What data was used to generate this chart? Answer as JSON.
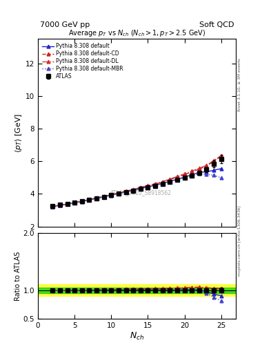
{
  "title_left": "7000 GeV pp",
  "title_right": "Soft QCD",
  "plot_title": "Average $p_T$ vs $N_{ch}$ ($N_{ch} > 1, p_T > 2.5$ GeV)",
  "ylabel_main": "$\\langle p_T \\rangle$ [GeV]",
  "ylabel_ratio": "Ratio to ATLAS",
  "xlabel": "$N_{ch}$",
  "watermark": "ATLAS_2010_S8918562",
  "right_label_top": "Rivet 3.1.10, ≥ 3M events",
  "right_label_bot": "mcplots.cern.ch [arXiv:1306.3436]",
  "atlas_x": [
    2,
    3,
    4,
    5,
    6,
    7,
    8,
    9,
    10,
    11,
    12,
    13,
    14,
    15,
    16,
    17,
    18,
    19,
    20,
    21,
    22,
    23,
    24,
    25
  ],
  "atlas_y": [
    3.25,
    3.32,
    3.38,
    3.46,
    3.55,
    3.64,
    3.73,
    3.82,
    3.92,
    4.01,
    4.1,
    4.2,
    4.3,
    4.4,
    4.5,
    4.62,
    4.75,
    4.88,
    5.0,
    5.14,
    5.28,
    5.5,
    5.85,
    6.15
  ],
  "atlas_yerr": [
    0.04,
    0.04,
    0.04,
    0.04,
    0.04,
    0.04,
    0.04,
    0.04,
    0.05,
    0.05,
    0.05,
    0.05,
    0.06,
    0.06,
    0.06,
    0.07,
    0.07,
    0.08,
    0.09,
    0.1,
    0.12,
    0.15,
    0.2,
    0.25
  ],
  "py_default_x": [
    2,
    3,
    4,
    5,
    6,
    7,
    8,
    9,
    10,
    11,
    12,
    13,
    14,
    15,
    16,
    17,
    18,
    19,
    20,
    21,
    22,
    23,
    24,
    25
  ],
  "py_default_y": [
    3.23,
    3.3,
    3.38,
    3.46,
    3.55,
    3.64,
    3.73,
    3.83,
    3.93,
    4.03,
    4.13,
    4.23,
    4.33,
    4.43,
    4.53,
    4.65,
    4.77,
    4.9,
    5.03,
    5.18,
    5.32,
    5.35,
    5.45,
    5.55
  ],
  "py_cd_x": [
    2,
    3,
    4,
    5,
    6,
    7,
    8,
    9,
    10,
    11,
    12,
    13,
    14,
    15,
    16,
    17,
    18,
    19,
    20,
    21,
    22,
    23,
    24,
    25
  ],
  "py_cd_y": [
    3.23,
    3.3,
    3.38,
    3.46,
    3.55,
    3.65,
    3.75,
    3.85,
    3.95,
    4.06,
    4.16,
    4.27,
    4.38,
    4.49,
    4.6,
    4.73,
    4.88,
    5.03,
    5.18,
    5.35,
    5.52,
    5.7,
    6.0,
    6.3
  ],
  "py_dl_x": [
    2,
    3,
    4,
    5,
    6,
    7,
    8,
    9,
    10,
    11,
    12,
    13,
    14,
    15,
    16,
    17,
    18,
    19,
    20,
    21,
    22,
    23,
    24,
    25
  ],
  "py_dl_y": [
    3.23,
    3.3,
    3.38,
    3.46,
    3.55,
    3.65,
    3.75,
    3.85,
    3.95,
    4.06,
    4.17,
    4.28,
    4.39,
    4.51,
    4.63,
    4.76,
    4.91,
    5.07,
    5.23,
    5.4,
    5.57,
    5.75,
    6.05,
    6.35
  ],
  "py_mbr_x": [
    2,
    3,
    4,
    5,
    6,
    7,
    8,
    9,
    10,
    11,
    12,
    13,
    14,
    15,
    16,
    17,
    18,
    19,
    20,
    21,
    22,
    23,
    24,
    25
  ],
  "py_mbr_y": [
    3.23,
    3.29,
    3.37,
    3.45,
    3.53,
    3.62,
    3.71,
    3.81,
    3.91,
    4.01,
    4.11,
    4.21,
    4.31,
    4.42,
    4.52,
    4.63,
    4.75,
    4.87,
    4.99,
    5.11,
    5.23,
    5.2,
    5.15,
    4.98
  ],
  "ylim_main": [
    2.0,
    13.5
  ],
  "ylim_ratio": [
    0.5,
    2.0
  ],
  "xlim": [
    0,
    27
  ],
  "yticks_main": [
    2,
    4,
    6,
    8,
    10,
    12
  ],
  "yticks_ratio": [
    0.5,
    1.0,
    2.0
  ],
  "color_atlas": "#000000",
  "color_default": "#2222cc",
  "color_cd": "#cc2222",
  "color_dl": "#cc2222",
  "color_mbr": "#4444cc",
  "green_band_inner": 0.05,
  "yellow_band_outer": 0.1
}
